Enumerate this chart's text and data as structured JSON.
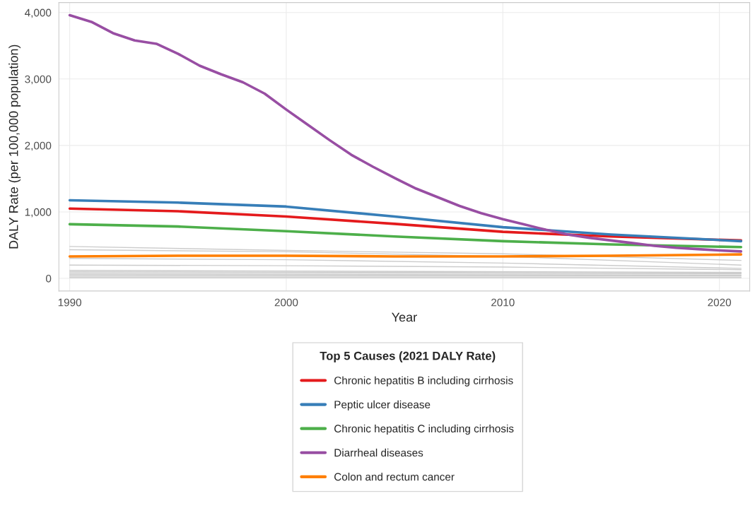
{
  "chart_data": {
    "type": "line",
    "xlabel": "Year",
    "ylabel": "DALY Rate (per 100,000 population)",
    "legend_title": "Top 5 Causes (2021 DALY Rate)",
    "xlim": [
      1989.5,
      2021.4
    ],
    "xticks": [
      1990,
      2000,
      2010,
      2020
    ],
    "ylim": [
      -190,
      4150
    ],
    "yticks": [
      {
        "value": 0,
        "label": "0"
      },
      {
        "value": 1000,
        "label": "1,000"
      },
      {
        "value": 2000,
        "label": "2,000"
      },
      {
        "value": 3000,
        "label": "3,000"
      },
      {
        "value": 4000,
        "label": "4,000"
      }
    ],
    "grid": true,
    "legend": "bottom",
    "series": [
      {
        "color": "#cccccc",
        "x": [
          1990,
          2000,
          2010,
          2021
        ],
        "values": [
          480,
          420,
          370,
          270
        ]
      },
      {
        "color": "#cccccc",
        "x": [
          1990,
          2000,
          2010,
          2021
        ],
        "values": [
          430,
          400,
          330,
          200
        ]
      },
      {
        "color": "#cccccc",
        "x": [
          1990,
          2000,
          2010,
          2021
        ],
        "values": [
          300,
          280,
          230,
          150
        ]
      },
      {
        "color": "#cccccc",
        "x": [
          1990,
          2000,
          2010,
          2021
        ],
        "values": [
          200,
          190,
          170,
          130
        ]
      },
      {
        "color": "#cccccc",
        "x": [
          1990,
          2021
        ],
        "values": [
          120,
          90
        ]
      },
      {
        "color": "#cccccc",
        "x": [
          1990,
          2021
        ],
        "values": [
          100,
          80
        ]
      },
      {
        "color": "#cccccc",
        "x": [
          1990,
          2021
        ],
        "values": [
          80,
          70
        ]
      },
      {
        "color": "#cccccc",
        "x": [
          1990,
          2021
        ],
        "values": [
          60,
          50
        ]
      },
      {
        "color": "#cccccc",
        "x": [
          1990,
          2021
        ],
        "values": [
          40,
          40
        ]
      },
      {
        "color": "#cccccc",
        "x": [
          1990,
          2021
        ],
        "values": [
          20,
          20
        ]
      },
      {
        "color": "#cccccc",
        "x": [
          1990,
          2021
        ],
        "values": [
          10,
          10
        ]
      },
      {
        "name": "Chronic hepatitis B including cirrhosis",
        "color": "#e41a1c",
        "x": [
          1990,
          1995,
          2000,
          2005,
          2010,
          2015,
          2021
        ],
        "values": [
          1050,
          1010,
          930,
          820,
          700,
          630,
          570
        ]
      },
      {
        "name": "Peptic ulcer disease",
        "color": "#377eb8",
        "x": [
          1990,
          1995,
          2000,
          2005,
          2010,
          2015,
          2021
        ],
        "values": [
          1175,
          1140,
          1080,
          930,
          770,
          660,
          560
        ]
      },
      {
        "name": "Chronic hepatitis C including cirrhosis",
        "color": "#4daf4a",
        "x": [
          1990,
          1995,
          2000,
          2005,
          2010,
          2015,
          2021
        ],
        "values": [
          815,
          780,
          710,
          630,
          560,
          510,
          470
        ]
      },
      {
        "name": "Diarrheal diseases",
        "color": "#984ea3",
        "x": [
          1990,
          1991,
          1992,
          1993,
          1994,
          1995,
          1996,
          1997,
          1998,
          1999,
          2000,
          2001,
          2002,
          2003,
          2004,
          2005,
          2006,
          2007,
          2008,
          2009,
          2010,
          2011,
          2012,
          2013,
          2014,
          2015,
          2016,
          2017,
          2018,
          2019,
          2020,
          2021
        ],
        "values": [
          3960,
          3860,
          3690,
          3580,
          3530,
          3380,
          3200,
          3070,
          2950,
          2780,
          2540,
          2310,
          2080,
          1860,
          1680,
          1510,
          1350,
          1220,
          1090,
          980,
          890,
          810,
          730,
          660,
          610,
          570,
          530,
          490,
          460,
          440,
          420,
          405
        ]
      },
      {
        "name": "Colon and rectum cancer",
        "color": "#ff7f00",
        "x": [
          1990,
          1995,
          2000,
          2005,
          2010,
          2015,
          2021
        ],
        "values": [
          330,
          340,
          340,
          330,
          330,
          340,
          360
        ]
      }
    ]
  }
}
